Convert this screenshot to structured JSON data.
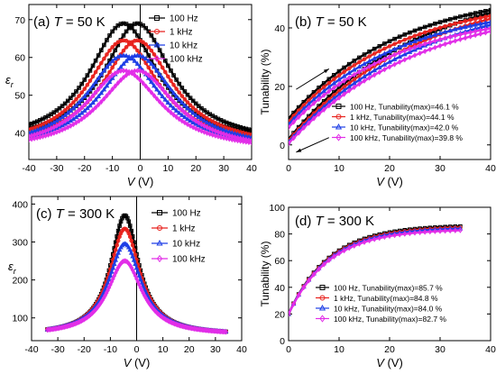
{
  "chart_data": [
    {
      "panel": "a",
      "type": "line",
      "label_prefix": "(a) ",
      "title_var": "T",
      "title_rest": " = 50 K",
      "xlabel_var": "V",
      "xlabel_unit": " (V)",
      "ylabel_var": "ε",
      "ylabel_sub": "r",
      "xlim": [
        -40,
        40
      ],
      "ylim": [
        33,
        74
      ],
      "xticks": [
        -40,
        -30,
        -20,
        -10,
        0,
        10,
        20,
        30,
        40
      ],
      "yticks": [
        40,
        50,
        60,
        70
      ],
      "vline_at": 0,
      "series": [
        {
          "name": "100 Hz",
          "color": "#000000",
          "marker": "square",
          "curves": [
            {
              "center": -6,
              "peak": 69,
              "base": 37,
              "width": 15
            },
            {
              "center": -1,
              "peak": 69,
              "base": 37,
              "width": 15
            }
          ]
        },
        {
          "name": "1 kHz",
          "color": "#e8221d",
          "marker": "circle",
          "curves": [
            {
              "center": -6,
              "peak": 64.5,
              "base": 36,
              "width": 15.5
            },
            {
              "center": -1,
              "peak": 64.5,
              "base": 36,
              "width": 15.5
            }
          ]
        },
        {
          "name": "10 kHz",
          "color": "#1f3fe6",
          "marker": "triangle",
          "curves": [
            {
              "center": -6,
              "peak": 60.5,
              "base": 35.5,
              "width": 16
            },
            {
              "center": -1,
              "peak": 60.5,
              "base": 35.5,
              "width": 16
            }
          ]
        },
        {
          "name": "100 kHz",
          "color": "#e22ee8",
          "marker": "diamond",
          "curves": [
            {
              "center": -6,
              "peak": 56.5,
              "base": 35,
              "width": 16.5
            },
            {
              "center": -1,
              "peak": 56.5,
              "base": 35,
              "width": 16.5
            }
          ]
        }
      ]
    },
    {
      "panel": "b",
      "type": "line",
      "label_prefix": "(b) ",
      "title_var": "T",
      "title_rest": " = 50 K",
      "xlabel_var": "V",
      "xlabel_unit": " (V)",
      "ylabel": "Tunability (%)",
      "xlim": [
        0,
        40
      ],
      "ylim": [
        -5,
        48
      ],
      "xticks": [
        0,
        10,
        20,
        30,
        40
      ],
      "yticks": [
        0,
        20,
        40
      ],
      "series": [
        {
          "name": "100 Hz, Tunability(max)=46.1 %",
          "color": "#000000",
          "marker": "square",
          "tmax": 46.1,
          "up_start": 9,
          "down_start": 2
        },
        {
          "name": "1 kHz, Tunability(max)=44.1 %",
          "color": "#e8221d",
          "marker": "circle",
          "tmax": 44.1,
          "up_start": 8,
          "down_start": 1.5
        },
        {
          "name": "10 kHz, Tunability(max)=42.0 %",
          "color": "#1f3fe6",
          "marker": "triangle",
          "tmax": 42.0,
          "up_start": 7,
          "down_start": 1
        },
        {
          "name": "100 kHz, Tunability(max)=39.8 %",
          "color": "#e22ee8",
          "marker": "diamond",
          "tmax": 39.8,
          "up_start": 6,
          "down_start": 0.5
        }
      ]
    },
    {
      "panel": "c",
      "type": "line",
      "label_prefix": "(c) ",
      "title_var": "T",
      "title_rest": " = 300 K",
      "xlabel_var": "V",
      "xlabel_unit": " (V)",
      "ylabel_var": "ε",
      "ylabel_sub": "r",
      "xlim": [
        -40,
        40
      ],
      "ylim": [
        40,
        420
      ],
      "xticks": [
        -40,
        -30,
        -20,
        -10,
        0,
        10,
        20,
        30,
        40
      ],
      "yticks": [
        100,
        200,
        300,
        400
      ],
      "vline_at": 0,
      "series": [
        {
          "name": "100 Hz",
          "color": "#000000",
          "marker": "square",
          "center": -4.5,
          "peak": 370,
          "base": 55,
          "width": 6.5
        },
        {
          "name": "1 kHz",
          "color": "#e8221d",
          "marker": "circle",
          "center": -4.5,
          "peak": 335,
          "base": 55,
          "width": 7
        },
        {
          "name": "10 kHz",
          "color": "#1f3fe6",
          "marker": "triangle",
          "center": -4.5,
          "peak": 295,
          "base": 55,
          "width": 7.5
        },
        {
          "name": "100 kHz",
          "color": "#e22ee8",
          "marker": "diamond",
          "center": -4.5,
          "peak": 250,
          "base": 55,
          "width": 8
        }
      ],
      "xrange_data": [
        -34,
        34
      ]
    },
    {
      "panel": "d",
      "type": "line",
      "label_prefix": "(d) ",
      "title_var": "T",
      "title_rest": " = 300 K",
      "xlabel_var": "V",
      "xlabel_unit": " (V)",
      "ylabel": "Tunability (%)",
      "xlim": [
        0,
        40
      ],
      "ylim": [
        0,
        100
      ],
      "xticks": [
        0,
        10,
        20,
        30,
        40
      ],
      "yticks": [
        0,
        20,
        40,
        60,
        80,
        100
      ],
      "xrange_data": [
        0,
        34
      ],
      "series": [
        {
          "name": "100 Hz, Tunability(max)=85.7 %",
          "color": "#000000",
          "marker": "square",
          "tmax": 85.7
        },
        {
          "name": "1 kHz, Tunability(max)=84.8 %",
          "color": "#e8221d",
          "marker": "circle",
          "tmax": 84.8
        },
        {
          "name": "10 kHz, Tunability(max)=84.0 %",
          "color": "#1f3fe6",
          "marker": "triangle",
          "tmax": 84.0
        },
        {
          "name": "100 kHz, Tunability(max)=82.7 %",
          "color": "#e22ee8",
          "marker": "diamond",
          "tmax": 82.7
        }
      ]
    }
  ]
}
